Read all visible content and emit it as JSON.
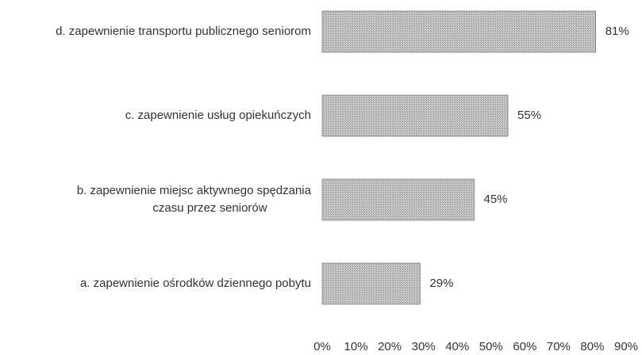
{
  "chart_data": {
    "type": "barh",
    "categories": [
      "d. zapewnienie transportu publicznego seniorom",
      "c. zapewnienie usług opiekuńczych",
      "b. zapewnienie miejsc aktywnego spędzania czasu przez seniorów",
      "a. zapewnienie ośrodków dziennego pobytu"
    ],
    "values": [
      81,
      55,
      45,
      29
    ],
    "value_labels": [
      "81%",
      "55%",
      "45%",
      "29%"
    ],
    "color": "#b4b4b4",
    "xlim": [
      0,
      90
    ],
    "xticks": [
      {
        "value": 0,
        "label": "0%"
      },
      {
        "value": 10,
        "label": "10%"
      },
      {
        "value": 20,
        "label": "20%"
      },
      {
        "value": 30,
        "label": "30%"
      },
      {
        "value": 40,
        "label": "40%"
      },
      {
        "value": 50,
        "label": "50%"
      },
      {
        "value": 60,
        "label": "60%"
      },
      {
        "value": 70,
        "label": "70%"
      },
      {
        "value": 80,
        "label": "80%"
      },
      {
        "value": 90,
        "label": "90%"
      }
    ],
    "grid": false
  }
}
